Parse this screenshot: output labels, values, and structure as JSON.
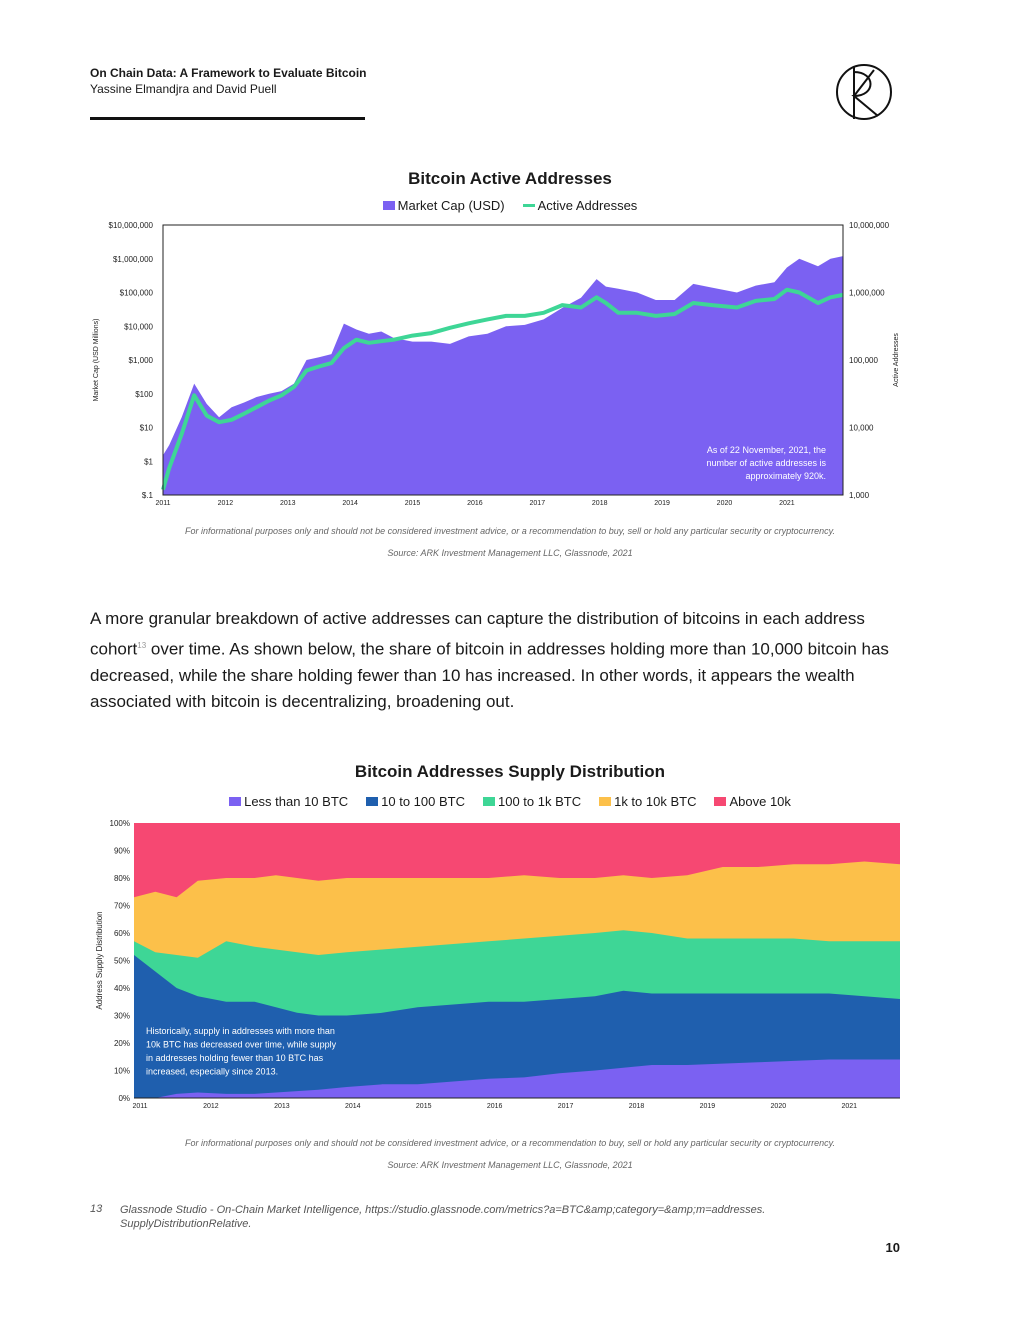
{
  "header": {
    "title": "On Chain Data: A Framework to Evaluate Bitcoin",
    "authors": "Yassine Elmandjra and David Puell"
  },
  "body": {
    "text_before": "A more granular breakdown of active addresses can capture the distribution of bitcoins in each address cohort",
    "footnote_ref": "13",
    "text_after": " over time. As shown below, the share of bitcoin in addresses holding more than 10,000 bitcoin has decreased, while the share holding fewer than 10 has increased. In other words, it appears the wealth associated with bitcoin is decentralizing, broadening out."
  },
  "disclaimer": "For informational purposes only and should not be considered investment advice, or a recommendation to buy, sell or hold any particular security or cryptocurrency.",
  "source": "Source: ARK Investment Management LLC, Glassnode, 2021",
  "footnote": {
    "number": "13",
    "text": "Glassnode Studio - On-Chain Market Intelligence, https://studio.glassnode.com/metrics?a=BTC&amp;category=&amp;m=addresses. SupplyDistributionRelative."
  },
  "page_number": "10",
  "colors": {
    "market_cap": "#7b61f2",
    "active_addresses": "#3ed696",
    "less_than_10": "#7b61f2",
    "ten_to_100": "#1f5fae",
    "hundred_to_1k": "#3ed696",
    "onek_to_10k": "#fcc04a",
    "above_10k": "#f64872"
  },
  "chart_data": [
    {
      "type": "area",
      "title": "Bitcoin Active Addresses",
      "legend": [
        "Market Cap (USD)",
        "Active Addresses"
      ],
      "ylabel": "Market Cap (USD Millions)",
      "y2label": "Active Addresses",
      "y_ticks": [
        "$10,000,000",
        "$1,000,000",
        "$100,000",
        "$10,000",
        "$1,000",
        "$100",
        "$10",
        "$1",
        "$.1"
      ],
      "y2_ticks": [
        "10,000,000",
        "1,000,000",
        "100,000",
        "10,000",
        "1,000"
      ],
      "x_ticks": [
        "2011",
        "2012",
        "2013",
        "2014",
        "2015",
        "2016",
        "2017",
        "2018",
        "2019",
        "2020",
        "2021"
      ],
      "ylim": [
        0.1,
        10000000
      ],
      "y2lim": [
        1000,
        10000000
      ],
      "scale": "log",
      "annotation": "As of 22 November, 2021, the number of active addresses is approximately 920k.",
      "x": [
        2011.0,
        2011.1,
        2011.3,
        2011.5,
        2011.7,
        2011.9,
        2012.1,
        2012.3,
        2012.5,
        2012.7,
        2012.9,
        2013.1,
        2013.3,
        2013.5,
        2013.7,
        2013.9,
        2014.1,
        2014.3,
        2014.5,
        2014.7,
        2015.0,
        2015.3,
        2015.6,
        2015.9,
        2016.2,
        2016.5,
        2016.8,
        2017.1,
        2017.4,
        2017.7,
        2017.95,
        2018.1,
        2018.3,
        2018.6,
        2018.9,
        2019.2,
        2019.5,
        2019.8,
        2020.2,
        2020.5,
        2020.8,
        2021.0,
        2021.2,
        2021.5,
        2021.7,
        2021.9
      ],
      "series": [
        {
          "name": "Market Cap (USD)",
          "values": [
            1.5,
            3,
            20,
            200,
            50,
            20,
            40,
            55,
            80,
            100,
            120,
            200,
            1000,
            1200,
            1500,
            12000,
            8000,
            6000,
            7000,
            4500,
            3500,
            3500,
            3000,
            5000,
            6000,
            10000,
            11000,
            16000,
            35000,
            70000,
            250000,
            150000,
            130000,
            100000,
            60000,
            60000,
            180000,
            140000,
            100000,
            160000,
            200000,
            550000,
            1000000,
            600000,
            1000000,
            1200000
          ]
        },
        {
          "name": "Active Addresses",
          "values": [
            1200,
            2500,
            8000,
            30000,
            15000,
            12000,
            13000,
            16000,
            20000,
            25000,
            30000,
            40000,
            70000,
            80000,
            90000,
            150000,
            200000,
            180000,
            190000,
            200000,
            230000,
            250000,
            300000,
            350000,
            400000,
            450000,
            450000,
            500000,
            650000,
            600000,
            850000,
            700000,
            500000,
            500000,
            450000,
            480000,
            700000,
            650000,
            600000,
            750000,
            800000,
            1100000,
            1000000,
            700000,
            850000,
            920000
          ]
        }
      ]
    },
    {
      "type": "area",
      "title": "Bitcoin Addresses Supply Distribution",
      "legend": [
        "Less than 10 BTC",
        "10 to 100 BTC",
        "100 to 1k BTC",
        "1k to 10k BTC",
        "Above 10k"
      ],
      "ylabel": "Address Supply Distribution",
      "y_ticks": [
        "100%",
        "90%",
        "80%",
        "70%",
        "60%",
        "50%",
        "40%",
        "30%",
        "20%",
        "10%",
        "0%"
      ],
      "x_ticks": [
        "2011",
        "2012",
        "2013",
        "2014",
        "2015",
        "2016",
        "2017",
        "2018",
        "2019",
        "2020",
        "2021"
      ],
      "ylim": [
        0,
        100
      ],
      "annotation": "Historically, supply in addresses with more than 10k BTC has decreased over time, while supply in addresses holding fewer than 10 BTC has increased, especially since 2013.",
      "x": [
        2011.0,
        2011.3,
        2011.6,
        2011.9,
        2012.3,
        2012.7,
        2013.0,
        2013.3,
        2013.6,
        2014.0,
        2014.5,
        2015.0,
        2015.5,
        2016.0,
        2016.5,
        2017.0,
        2017.5,
        2017.9,
        2018.3,
        2018.8,
        2019.3,
        2019.8,
        2020.3,
        2020.8,
        2021.3,
        2021.8
      ],
      "series": [
        {
          "name": "Less than 10 BTC",
          "cumulative_top": [
            0,
            0,
            1.5,
            2,
            1.5,
            1.5,
            2,
            2.5,
            3,
            4,
            5,
            5,
            6,
            7,
            7.5,
            9,
            10,
            11,
            12,
            12,
            12.5,
            13,
            13.5,
            14,
            14,
            14
          ]
        },
        {
          "name": "10 to 100 BTC",
          "cumulative_top": [
            52,
            46,
            40,
            37,
            35,
            35,
            33,
            31,
            30,
            30,
            31,
            33,
            34,
            35,
            35,
            36,
            37,
            39,
            38,
            38,
            38,
            38,
            38,
            38,
            37,
            36
          ]
        },
        {
          "name": "100 to 1k BTC",
          "cumulative_top": [
            57,
            53,
            52,
            51,
            57,
            55,
            54,
            53,
            52,
            53,
            54,
            55,
            56,
            57,
            58,
            59,
            60,
            61,
            60,
            58,
            58,
            58,
            58,
            57,
            57,
            57
          ]
        },
        {
          "name": "1k to 10k BTC",
          "cumulative_top": [
            73,
            75,
            73,
            79,
            80,
            80,
            81,
            80,
            79,
            80,
            80,
            80,
            80,
            80,
            81,
            80,
            80,
            81,
            80,
            81,
            84,
            84,
            85,
            85,
            86,
            85
          ]
        },
        {
          "name": "Above 10k",
          "cumulative_top": [
            100,
            100,
            100,
            100,
            100,
            100,
            100,
            100,
            100,
            100,
            100,
            100,
            100,
            100,
            100,
            100,
            100,
            100,
            100,
            100,
            100,
            100,
            100,
            100,
            100,
            100
          ]
        }
      ]
    }
  ]
}
